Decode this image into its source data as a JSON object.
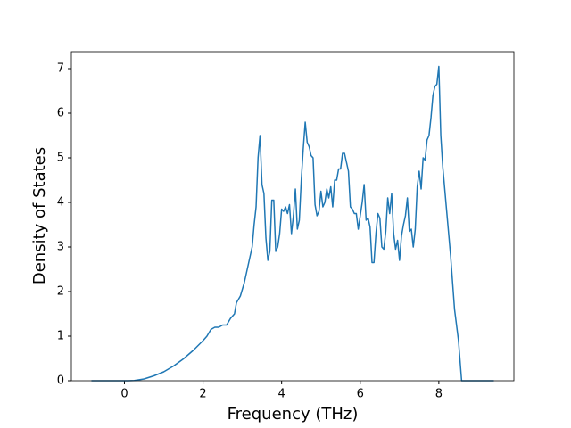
{
  "chart_data": {
    "type": "line",
    "xlabel": "Frequency (THz)",
    "ylabel": "Density of States",
    "color": "#1f77b4",
    "xlim": [
      -1.35,
      9.91
    ],
    "ylim": [
      0,
      7.38
    ],
    "xticks": [
      0,
      2,
      4,
      6,
      8
    ],
    "yticks": [
      0,
      1,
      2,
      3,
      4,
      5,
      6,
      7
    ],
    "x": [
      -0.84,
      0.1,
      0.25,
      0.5,
      0.75,
      1.0,
      1.25,
      1.5,
      1.75,
      2.0,
      2.1,
      2.2,
      2.3,
      2.4,
      2.5,
      2.6,
      2.7,
      2.8,
      2.85,
      2.95,
      3.05,
      3.15,
      3.25,
      3.3,
      3.35,
      3.4,
      3.45,
      3.5,
      3.55,
      3.6,
      3.65,
      3.7,
      3.75,
      3.8,
      3.85,
      3.9,
      3.95,
      4.0,
      4.05,
      4.1,
      4.15,
      4.2,
      4.25,
      4.3,
      4.35,
      4.4,
      4.45,
      4.5,
      4.55,
      4.6,
      4.65,
      4.7,
      4.75,
      4.8,
      4.85,
      4.9,
      4.95,
      5.0,
      5.05,
      5.1,
      5.15,
      5.2,
      5.25,
      5.3,
      5.35,
      5.4,
      5.45,
      5.5,
      5.55,
      5.6,
      5.65,
      5.7,
      5.75,
      5.8,
      5.85,
      5.9,
      5.95,
      6.0,
      6.05,
      6.1,
      6.15,
      6.2,
      6.25,
      6.3,
      6.35,
      6.4,
      6.45,
      6.5,
      6.55,
      6.6,
      6.65,
      6.7,
      6.75,
      6.8,
      6.85,
      6.9,
      6.95,
      7.0,
      7.05,
      7.1,
      7.15,
      7.2,
      7.25,
      7.3,
      7.35,
      7.4,
      7.45,
      7.5,
      7.55,
      7.6,
      7.65,
      7.7,
      7.75,
      7.8,
      7.85,
      7.9,
      7.95,
      8.0,
      8.05,
      8.1,
      8.2,
      8.3,
      8.4,
      8.5,
      8.58,
      9.4
    ],
    "values": [
      0,
      0,
      0.006,
      0.04,
      0.11,
      0.2,
      0.33,
      0.49,
      0.68,
      0.9,
      1.0,
      1.15,
      1.2,
      1.2,
      1.25,
      1.25,
      1.4,
      1.5,
      1.75,
      1.9,
      2.2,
      2.6,
      3.0,
      3.5,
      3.9,
      5.0,
      5.5,
      4.4,
      4.2,
      3.2,
      2.7,
      2.9,
      4.05,
      4.05,
      2.9,
      3.0,
      3.3,
      3.85,
      3.8,
      3.9,
      3.75,
      3.95,
      3.3,
      3.7,
      4.3,
      3.4,
      3.6,
      4.5,
      5.2,
      5.8,
      5.35,
      5.25,
      5.05,
      5.0,
      3.95,
      3.7,
      3.8,
      4.25,
      3.9,
      4.0,
      4.3,
      4.1,
      4.35,
      3.9,
      4.5,
      4.5,
      4.75,
      4.75,
      5.1,
      5.1,
      4.9,
      4.7,
      3.9,
      3.85,
      3.75,
      3.75,
      3.4,
      3.7,
      4.0,
      4.4,
      3.6,
      3.65,
      3.45,
      2.65,
      2.65,
      3.3,
      3.75,
      3.65,
      3.0,
      2.95,
      3.35,
      4.1,
      3.75,
      4.2,
      3.3,
      2.95,
      3.15,
      2.7,
      3.25,
      3.5,
      3.7,
      4.1,
      3.35,
      3.4,
      3.0,
      3.4,
      4.35,
      4.7,
      4.3,
      5.0,
      4.95,
      5.4,
      5.5,
      5.9,
      6.4,
      6.6,
      6.65,
      7.05,
      5.5,
      4.8,
      3.8,
      2.8,
      1.6,
      0.9,
      0,
      0
    ]
  }
}
